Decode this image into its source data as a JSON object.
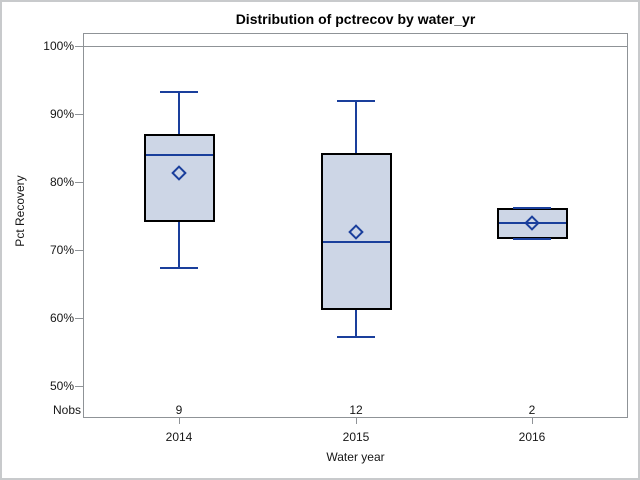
{
  "figure": {
    "title": "Distribution of pctrecov by water_yr",
    "y_axis_label": "Pct Recovery",
    "x_axis_label": "Water year",
    "nobs_label": "Nobs"
  },
  "chart_data": {
    "type": "boxplot",
    "title": "Distribution of pctrecov by water_yr",
    "xlabel": "Water year",
    "ylabel": "Pct Recovery",
    "categories": [
      "2014",
      "2015",
      "2016"
    ],
    "y_ticks": [
      {
        "label": "100%",
        "value": 100
      },
      {
        "label": "90%",
        "value": 90
      },
      {
        "label": "80%",
        "value": 80
      },
      {
        "label": "70%",
        "value": 70
      },
      {
        "label": "60%",
        "value": 60
      },
      {
        "label": "50%",
        "value": 50
      }
    ],
    "ylim": [
      45.5,
      101.9
    ],
    "grid": false,
    "legend": "none",
    "nobs_row_label": "Nobs",
    "boxes": [
      {
        "category": "2014",
        "nobs": "9",
        "whisker_low": 67.4,
        "q1": 74.1,
        "median": 84.0,
        "q3": 87.1,
        "whisker_high": 93.2,
        "mean": 81.3
      },
      {
        "category": "2015",
        "nobs": "12",
        "whisker_low": 57.2,
        "q1": 61.2,
        "median": 71.2,
        "q3": 84.3,
        "whisker_high": 91.9,
        "mean": 72.6
      },
      {
        "category": "2016",
        "nobs": "2",
        "whisker_low": 71.6,
        "q1": 71.6,
        "median": 74.0,
        "q3": 76.2,
        "whisker_high": 76.2,
        "mean": 74.0
      }
    ],
    "colors": {
      "box_fill": "#cdd6e6",
      "box_border": "#000000",
      "whisker": "#1a3f9c",
      "median": "#1a3f9c",
      "mean_marker": "#1a3f9c",
      "axis_line": "#8f9397",
      "text": "#161616",
      "figure_border": "#c8cacc",
      "background": "#ffffff"
    }
  }
}
